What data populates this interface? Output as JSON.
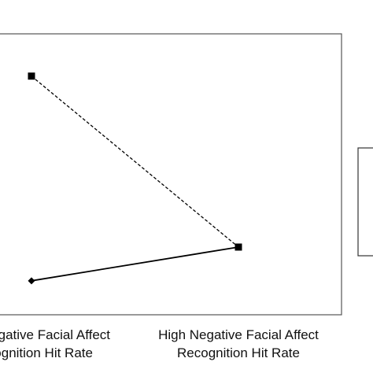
{
  "chart_data": {
    "type": "line",
    "categories": [
      [
        "Low Negative Facial Affect",
        "Recognition Hit Rate"
      ],
      [
        "High Negative Facial Affect",
        "Recognition Hit Rate"
      ]
    ],
    "series": [
      {
        "values": [
          0.88,
          0.17
        ],
        "line_style": "dashed",
        "marker": "square",
        "color": "#000000"
      },
      {
        "values": [
          0.03,
          0.17
        ],
        "line_style": "solid",
        "marker": "diamond",
        "color": "#000000"
      }
    ],
    "ylim": [
      0,
      1
    ],
    "grid": false,
    "legend": "right"
  }
}
